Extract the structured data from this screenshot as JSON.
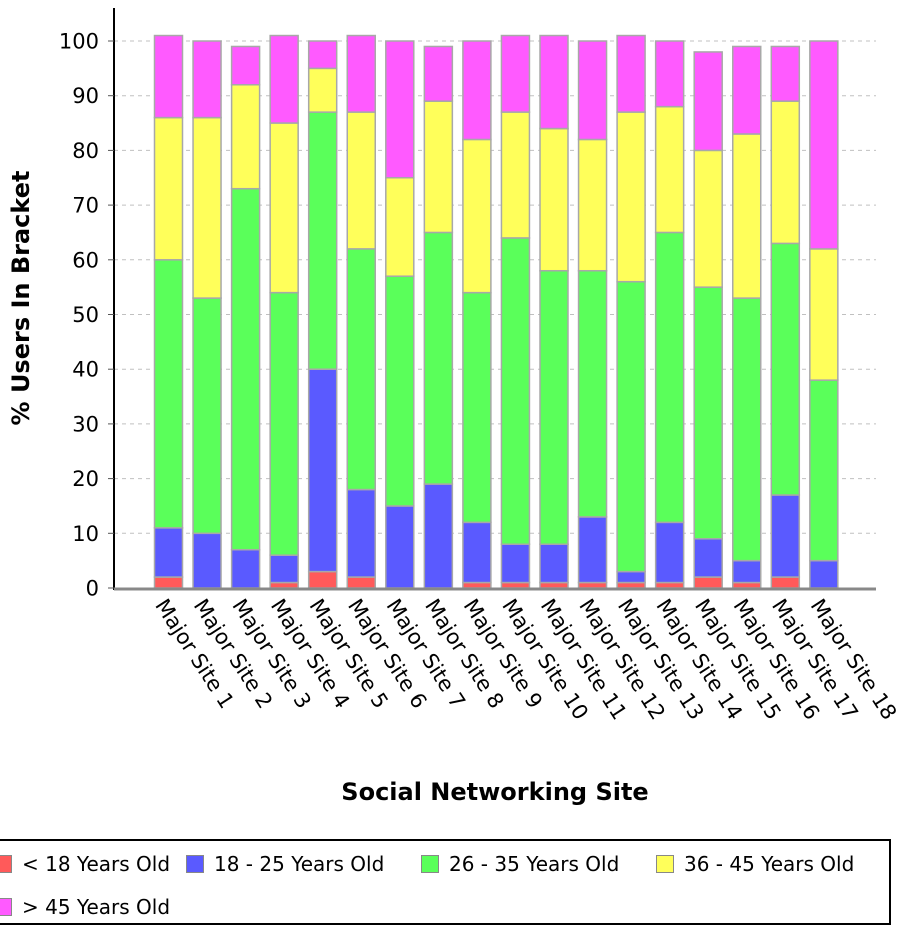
{
  "chart_data": {
    "type": "bar",
    "stacked": true,
    "xlabel": "Social Networking Site",
    "ylabel": "% Users In Bracket",
    "ylim": [
      0,
      105
    ],
    "yticks": [
      0,
      10,
      20,
      30,
      40,
      50,
      60,
      70,
      80,
      90,
      100
    ],
    "grid": "horizontal dashed",
    "legend_position": "bottom",
    "categories": [
      "Major Site 1",
      "Major Site 2",
      "Major Site 3",
      "Major Site 4",
      "Major Site 5",
      "Major Site 6",
      "Major Site 7",
      "Major Site 8",
      "Major Site 9",
      "Major Site 10",
      "Major Site 11",
      "Major Site 12",
      "Major Site 13",
      "Major Site 14",
      "Major Site 15",
      "Major Site 16",
      "Major Site 17",
      "Major Site 18"
    ],
    "series": [
      {
        "name": "< 18 Years Old",
        "color": "#ff5a5a",
        "values": [
          2,
          0,
          0,
          1,
          3,
          2,
          0,
          0,
          1,
          1,
          1,
          1,
          1,
          1,
          2,
          1,
          2,
          0
        ]
      },
      {
        "name": "18 - 25 Years Old",
        "color": "#5a5aff",
        "values": [
          9,
          10,
          7,
          5,
          37,
          16,
          15,
          19,
          11,
          7,
          7,
          12,
          2,
          11,
          7,
          4,
          15,
          5
        ]
      },
      {
        "name": "26 - 35 Years Old",
        "color": "#5aff5a",
        "values": [
          49,
          43,
          66,
          48,
          47,
          44,
          42,
          46,
          42,
          56,
          50,
          45,
          53,
          53,
          46,
          48,
          46,
          33
        ]
      },
      {
        "name": "36 - 45 Years Old",
        "color": "#ffff5a",
        "values": [
          26,
          33,
          19,
          31,
          8,
          25,
          18,
          24,
          28,
          23,
          26,
          24,
          31,
          23,
          25,
          30,
          26,
          24
        ]
      },
      {
        "name": "> 45 Years Old",
        "color": "#ff5aff",
        "values": [
          15,
          14,
          7,
          16,
          5,
          14,
          25,
          10,
          18,
          14,
          17,
          18,
          14,
          12,
          18,
          16,
          10,
          38
        ]
      }
    ]
  }
}
